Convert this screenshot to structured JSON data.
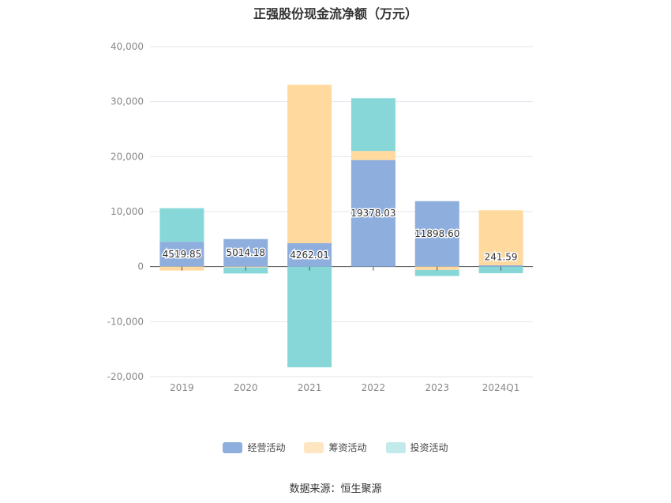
{
  "title": "正强股份现金流净额（万元）",
  "source": "数据来源：恒生聚源",
  "colors": {
    "operating": "#8eaedd",
    "financing": "#ffd99e",
    "investing": "#87d7d9",
    "legend_financing": "#ffe6c2",
    "legend_investing": "#c2eaeb",
    "grid": "#e3e6ee",
    "axis_text": "#888888"
  },
  "chart_data": {
    "type": "bar",
    "stacked": true,
    "categories": [
      "2019",
      "2020",
      "2021",
      "2022",
      "2023",
      "2024Q1"
    ],
    "series": [
      {
        "name": "经营活动",
        "values": [
          4519.85,
          5014.18,
          4262.01,
          19378.03,
          11898.6,
          241.59
        ]
      },
      {
        "name": "筹资活动",
        "values": [
          -700,
          -150,
          28800,
          1650,
          -600,
          10000
        ]
      },
      {
        "name": "投资活动",
        "values": [
          6100,
          -1100,
          -18300,
          9600,
          -1100,
          -1200
        ]
      }
    ],
    "data_labels": [
      "4519.85",
      "5014.18",
      "4262.01",
      "19378.03",
      "11898.60",
      "241.59"
    ],
    "y_ticks": [
      40000,
      30000,
      20000,
      10000,
      0,
      -10000,
      -20000
    ],
    "y_tick_labels": [
      "40,000",
      "30,000",
      "20,000",
      "10,000",
      "0",
      "-10,000",
      "-20,000"
    ],
    "ylim": [
      -20000,
      40000
    ],
    "grid": true,
    "legend_position": "bottom"
  }
}
